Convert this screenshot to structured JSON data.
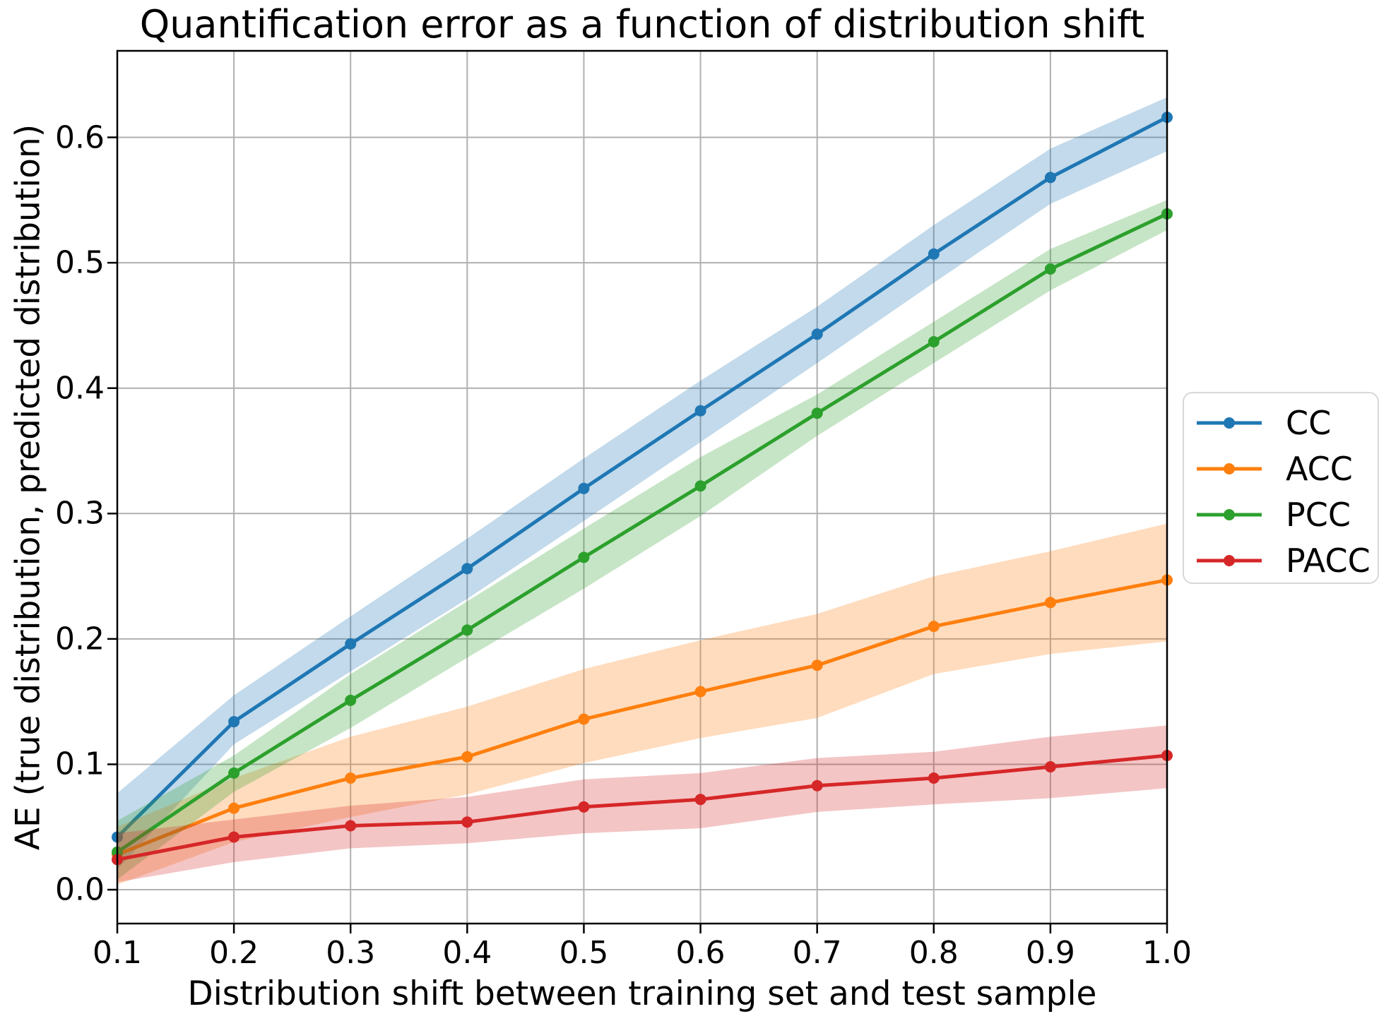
{
  "title": "Quantification error as a function of distribution shift",
  "xlabel": "Distribution shift between training set and test sample",
  "ylabel": "AE (true distribution, predicted distribution)",
  "chart_data": {
    "type": "line",
    "x": [
      0.1,
      0.2,
      0.3,
      0.4,
      0.5,
      0.6,
      0.7,
      0.8,
      0.9,
      1.0
    ],
    "x_tick_labels": [
      "0.1",
      "0.2",
      "0.3",
      "0.4",
      "0.5",
      "0.6",
      "0.7",
      "0.8",
      "0.9",
      "1.0"
    ],
    "y_ticks": [
      0.0,
      0.1,
      0.2,
      0.3,
      0.4,
      0.5,
      0.6
    ],
    "y_tick_labels": [
      "0.0",
      "0.1",
      "0.2",
      "0.3",
      "0.4",
      "0.5",
      "0.6"
    ],
    "xlim": [
      0.1,
      1.0
    ],
    "ylim": [
      -0.027,
      0.669
    ],
    "grid": true,
    "grid_color": "#b0b0b0",
    "spine_color": "#000000",
    "band_alpha": 0.27,
    "legend_position": "outside-right",
    "series": [
      {
        "name": "CC",
        "color": "#1f77b4",
        "values": [
          0.042,
          0.134,
          0.196,
          0.256,
          0.32,
          0.382,
          0.443,
          0.507,
          0.568,
          0.616
        ],
        "band_lower": [
          0.016,
          0.116,
          0.174,
          0.232,
          0.294,
          0.357,
          0.42,
          0.484,
          0.547,
          0.589
        ],
        "band_upper": [
          0.077,
          0.155,
          0.218,
          0.28,
          0.344,
          0.406,
          0.465,
          0.53,
          0.591,
          0.632
        ]
      },
      {
        "name": "ACC",
        "color": "#ff7f0e",
        "values": [
          0.028,
          0.065,
          0.089,
          0.106,
          0.136,
          0.158,
          0.179,
          0.21,
          0.229,
          0.247
        ],
        "band_lower": [
          0.004,
          0.038,
          0.058,
          0.076,
          0.101,
          0.121,
          0.137,
          0.172,
          0.188,
          0.198
        ],
        "band_upper": [
          0.05,
          0.089,
          0.122,
          0.146,
          0.176,
          0.199,
          0.22,
          0.25,
          0.27,
          0.292
        ]
      },
      {
        "name": "PCC",
        "color": "#2ca02c",
        "values": [
          0.03,
          0.093,
          0.151,
          0.207,
          0.265,
          0.322,
          0.38,
          0.437,
          0.495,
          0.539
        ],
        "band_lower": [
          0.008,
          0.078,
          0.129,
          0.185,
          0.24,
          0.298,
          0.362,
          0.42,
          0.478,
          0.526
        ],
        "band_upper": [
          0.055,
          0.107,
          0.172,
          0.23,
          0.288,
          0.345,
          0.395,
          0.453,
          0.511,
          0.55
        ]
      },
      {
        "name": "PACC",
        "color": "#d62728",
        "values": [
          0.024,
          0.042,
          0.051,
          0.054,
          0.066,
          0.072,
          0.083,
          0.089,
          0.098,
          0.107
        ],
        "band_lower": [
          0.006,
          0.022,
          0.033,
          0.037,
          0.045,
          0.049,
          0.062,
          0.068,
          0.073,
          0.081
        ],
        "band_upper": [
          0.045,
          0.056,
          0.067,
          0.074,
          0.088,
          0.093,
          0.105,
          0.11,
          0.122,
          0.131
        ]
      }
    ]
  },
  "legend": {
    "items": [
      {
        "label": "CC",
        "color": "#1f77b4"
      },
      {
        "label": "ACC",
        "color": "#ff7f0e"
      },
      {
        "label": "PCC",
        "color": "#2ca02c"
      },
      {
        "label": "PACC",
        "color": "#d62728"
      }
    ]
  }
}
